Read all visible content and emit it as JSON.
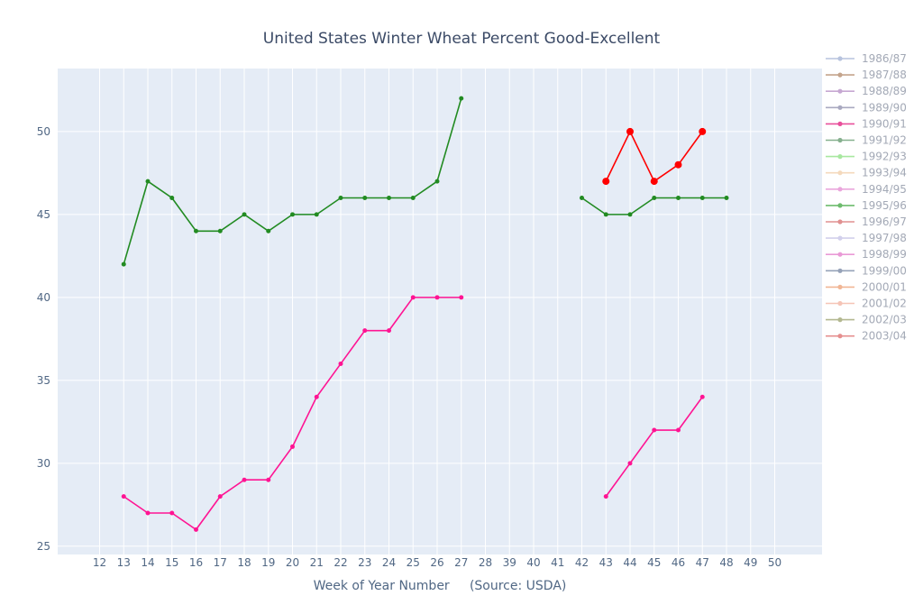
{
  "chart_data": {
    "type": "line",
    "title": "United States Winter Wheat Percent Good-Excellent",
    "xlabel": "Week of Year Number     (Source: USDA)",
    "ylabel": "",
    "x_ticks": [
      12,
      13,
      14,
      15,
      16,
      17,
      18,
      19,
      20,
      21,
      22,
      23,
      24,
      25,
      26,
      27,
      28,
      39,
      40,
      41,
      42,
      43,
      44,
      45,
      46,
      47,
      48,
      49,
      50
    ],
    "y_ticks": [
      25,
      30,
      35,
      40,
      45,
      50
    ],
    "ylim": [
      24.5,
      53.8
    ],
    "grid": true,
    "background": "#e5ecf6",
    "legend_position": "right",
    "legend": [
      {
        "name": "1986/87",
        "color": "#b7c3de"
      },
      {
        "name": "1987/88",
        "color": "#c4a48c"
      },
      {
        "name": "1988/89",
        "color": "#c6a8d2"
      },
      {
        "name": "1989/90",
        "color": "#a9a9c0"
      },
      {
        "name": "1990/91",
        "color": "#e8509b"
      },
      {
        "name": "1991/92",
        "color": "#86b08e"
      },
      {
        "name": "1992/93",
        "color": "#a8e8a0"
      },
      {
        "name": "1993/94",
        "color": "#f4d9bc"
      },
      {
        "name": "1994/95",
        "color": "#eaa6dc"
      },
      {
        "name": "1995/96",
        "color": "#6dbb6d"
      },
      {
        "name": "1996/97",
        "color": "#e09090"
      },
      {
        "name": "1997/98",
        "color": "#d2d0ec"
      },
      {
        "name": "1998/99",
        "color": "#e99ad6"
      },
      {
        "name": "1999/00",
        "color": "#96a2b8"
      },
      {
        "name": "2000/01",
        "color": "#f1b695"
      },
      {
        "name": "2001/02",
        "color": "#f5c4b6"
      },
      {
        "name": "2002/03",
        "color": "#b3b890"
      },
      {
        "name": "2003/04",
        "color": "#e58f8f"
      }
    ],
    "series": [
      {
        "color": "#228b22",
        "marker_size": 4,
        "x": [
          13,
          14,
          15,
          16,
          17,
          18,
          19,
          20,
          21,
          22,
          23,
          24,
          25,
          26,
          27
        ],
        "y": [
          42,
          47,
          46,
          44,
          44,
          45,
          44,
          45,
          45,
          46,
          46,
          46,
          46,
          47,
          52
        ]
      },
      {
        "color": "#228b22",
        "marker_size": 4,
        "x": [
          42,
          43,
          44,
          45,
          46,
          47,
          48
        ],
        "y": [
          46,
          45,
          45,
          46,
          46,
          46,
          46
        ]
      },
      {
        "color": "#ff1493",
        "marker_size": 4,
        "x": [
          13,
          14,
          15,
          16,
          17,
          18,
          19,
          20,
          21,
          22,
          23,
          24,
          25,
          26,
          27
        ],
        "y": [
          28,
          27,
          27,
          26,
          28,
          29,
          29,
          31,
          34,
          36,
          38,
          38,
          40,
          40,
          40
        ]
      },
      {
        "color": "#ff1493",
        "marker_size": 4,
        "x": [
          43,
          44,
          45,
          46,
          47
        ],
        "y": [
          28,
          30,
          32,
          32,
          34
        ]
      },
      {
        "color": "#ff0000",
        "marker_size": 7,
        "x": [
          43,
          44,
          45,
          46,
          47
        ],
        "y": [
          47,
          50,
          47,
          48,
          50
        ]
      }
    ]
  }
}
